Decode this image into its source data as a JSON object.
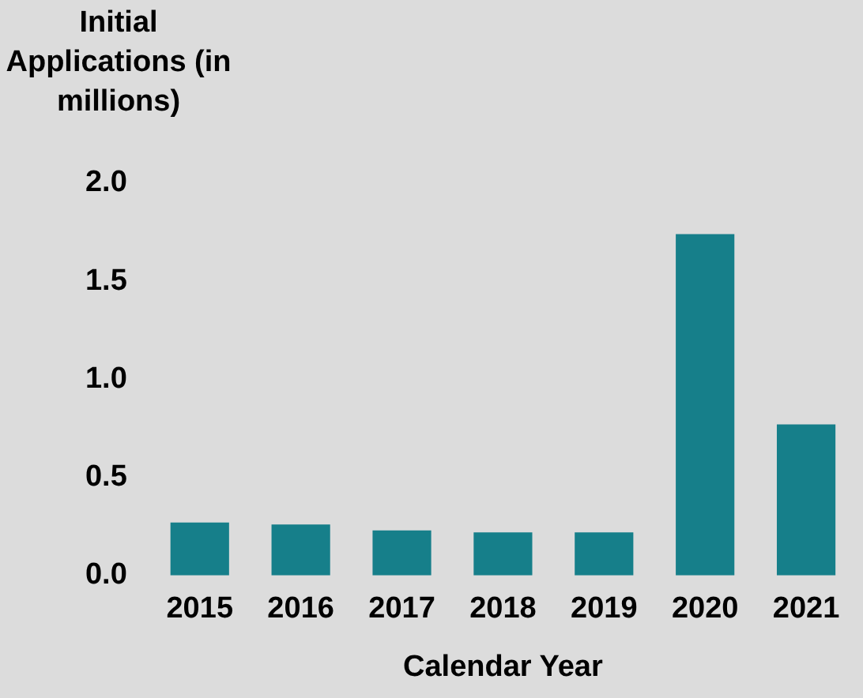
{
  "chart_data": {
    "type": "bar",
    "ylabel": "Initial Applications (in millions)",
    "xlabel": "Calendar Year",
    "categories": [
      "2015",
      "2016",
      "2017",
      "2018",
      "2019",
      "2020",
      "2021"
    ],
    "values": [
      0.27,
      0.26,
      0.23,
      0.22,
      0.22,
      1.74,
      0.77
    ],
    "color": "#167f8a",
    "ylim": [
      0,
      2.0
    ],
    "yticks": [
      {
        "value": 0,
        "label": "0.0"
      },
      {
        "value": 0.5,
        "label": "0.5"
      },
      {
        "value": 1,
        "label": "1.0"
      },
      {
        "value": 1.5,
        "label": "1.5"
      },
      {
        "value": 2,
        "label": "2.0"
      }
    ],
    "grid": false,
    "legend": false
  }
}
